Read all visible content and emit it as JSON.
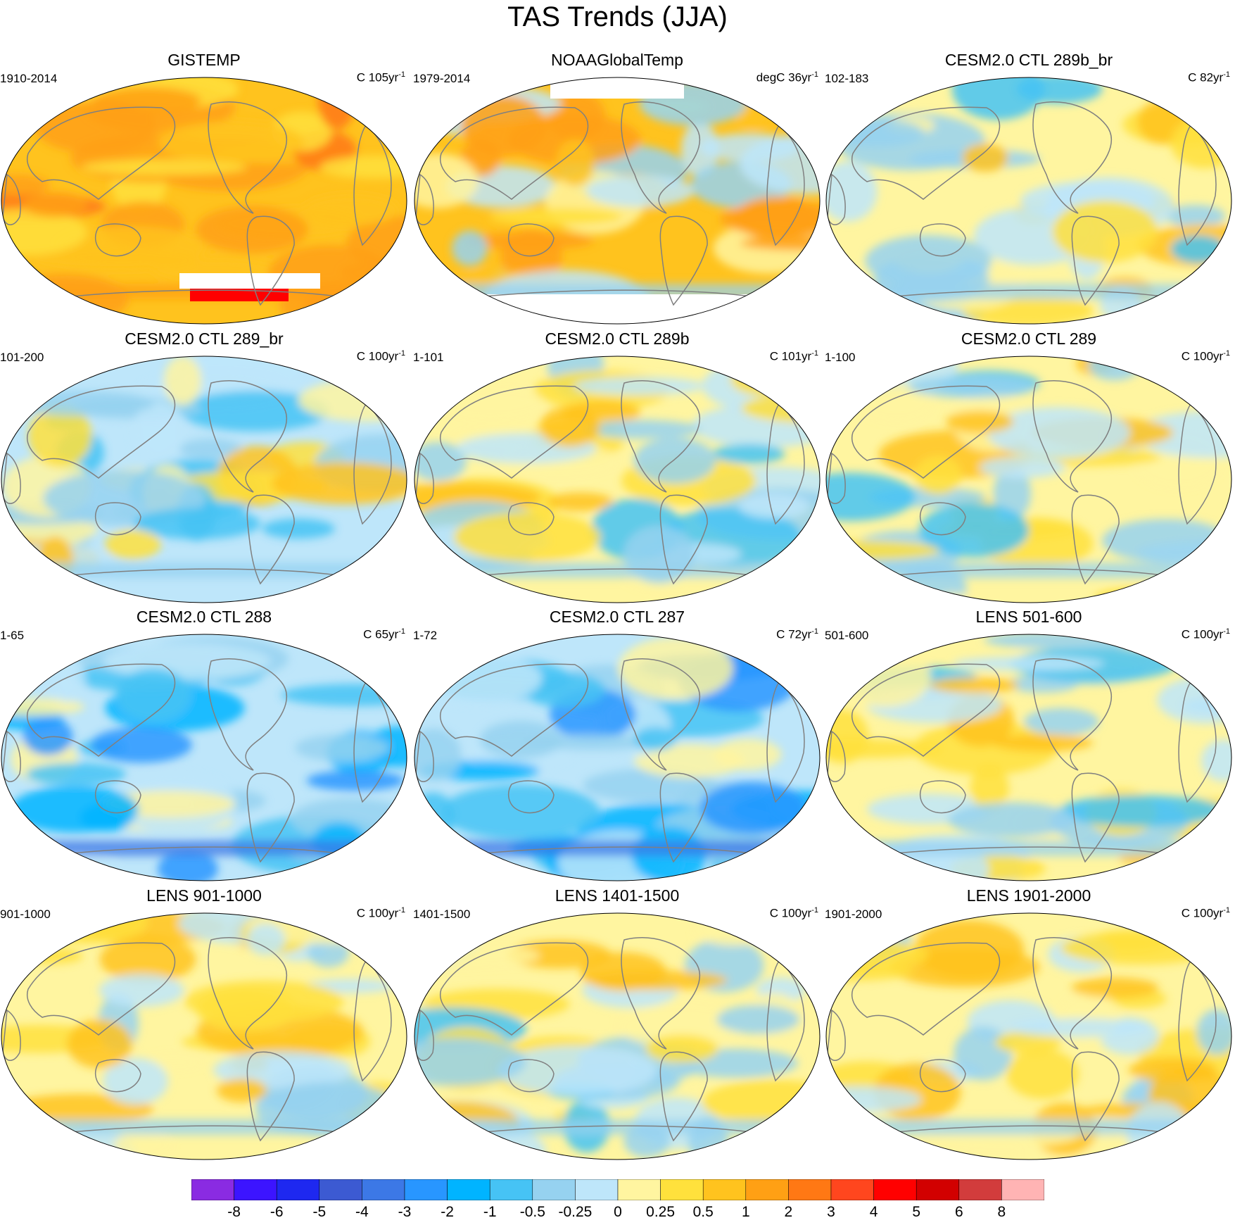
{
  "title": "TAS Trends (JJA)",
  "panels": [
    {
      "title": "GISTEMP",
      "left": "1910-2014",
      "right_unit": "C 105yr",
      "right_exp": "-1",
      "style": "obs_warm",
      "seed": 1
    },
    {
      "title": "NOAAGlobalTemp",
      "left": "1979-2014",
      "right_unit": "degC 36yr",
      "right_exp": "-1",
      "style": "obs_recent",
      "seed": 2
    },
    {
      "title": "CESM2.0 CTL 289b_br",
      "left": "102-183",
      "right_unit": "C 82yr",
      "right_exp": "-1",
      "style": "model_mixed",
      "seed": 3
    },
    {
      "title": "CESM2.0 CTL 289_br",
      "left": "101-200",
      "right_unit": "C 100yr",
      "right_exp": "-1",
      "style": "model_cool",
      "seed": 4
    },
    {
      "title": "CESM2.0 CTL 289b",
      "left": "1-101",
      "right_unit": "C 101yr",
      "right_exp": "-1",
      "style": "model_mixed",
      "seed": 5
    },
    {
      "title": "CESM2.0 CTL 289",
      "left": "1-100",
      "right_unit": "C 100yr",
      "right_exp": "-1",
      "style": "model_mixed",
      "seed": 6
    },
    {
      "title": "CESM2.0 CTL 288",
      "left": "1-65",
      "right_unit": "C 65yr",
      "right_exp": "-1",
      "style": "model_cold",
      "seed": 7
    },
    {
      "title": "CESM2.0 CTL 287",
      "left": "1-72",
      "right_unit": "C 72yr",
      "right_exp": "-1",
      "style": "model_cold",
      "seed": 8
    },
    {
      "title": "LENS 501-600",
      "left": "501-600",
      "right_unit": "C 100yr",
      "right_exp": "-1",
      "style": "model_mixed",
      "seed": 9
    },
    {
      "title": "LENS 901-1000",
      "left": "901-1000",
      "right_unit": "C 100yr",
      "right_exp": "-1",
      "style": "model_warmish",
      "seed": 10
    },
    {
      "title": "LENS 1401-1500",
      "left": "1401-1500",
      "right_unit": "C 100yr",
      "right_exp": "-1",
      "style": "model_mixed",
      "seed": 11
    },
    {
      "title": "LENS 1901-2000",
      "left": "1901-2000",
      "right_unit": "C 100yr",
      "right_exp": "-1",
      "style": "model_warmish",
      "seed": 12
    }
  ],
  "colorbar": {
    "colors": [
      "#8a2be2",
      "#3c14ff",
      "#1e28f0",
      "#3c5ad2",
      "#3c78e6",
      "#2896ff",
      "#00b4ff",
      "#46c3f5",
      "#96d2f0",
      "#bee6fa",
      "#fff5a0",
      "#ffe13c",
      "#ffc31e",
      "#ffa014",
      "#ff7814",
      "#ff461e",
      "#ff0000",
      "#d20000",
      "#d23c3c",
      "#ffb4b4"
    ],
    "labels": [
      "-8",
      "-6",
      "-5",
      "-4",
      "-3",
      "-2",
      "-1",
      "-0.5",
      "-0.25",
      "0",
      "0.25",
      "0.5",
      "1",
      "2",
      "3",
      "4",
      "5",
      "6",
      "8"
    ]
  },
  "colors": {
    "coast": "#808080",
    "missing": "#ffffff"
  }
}
